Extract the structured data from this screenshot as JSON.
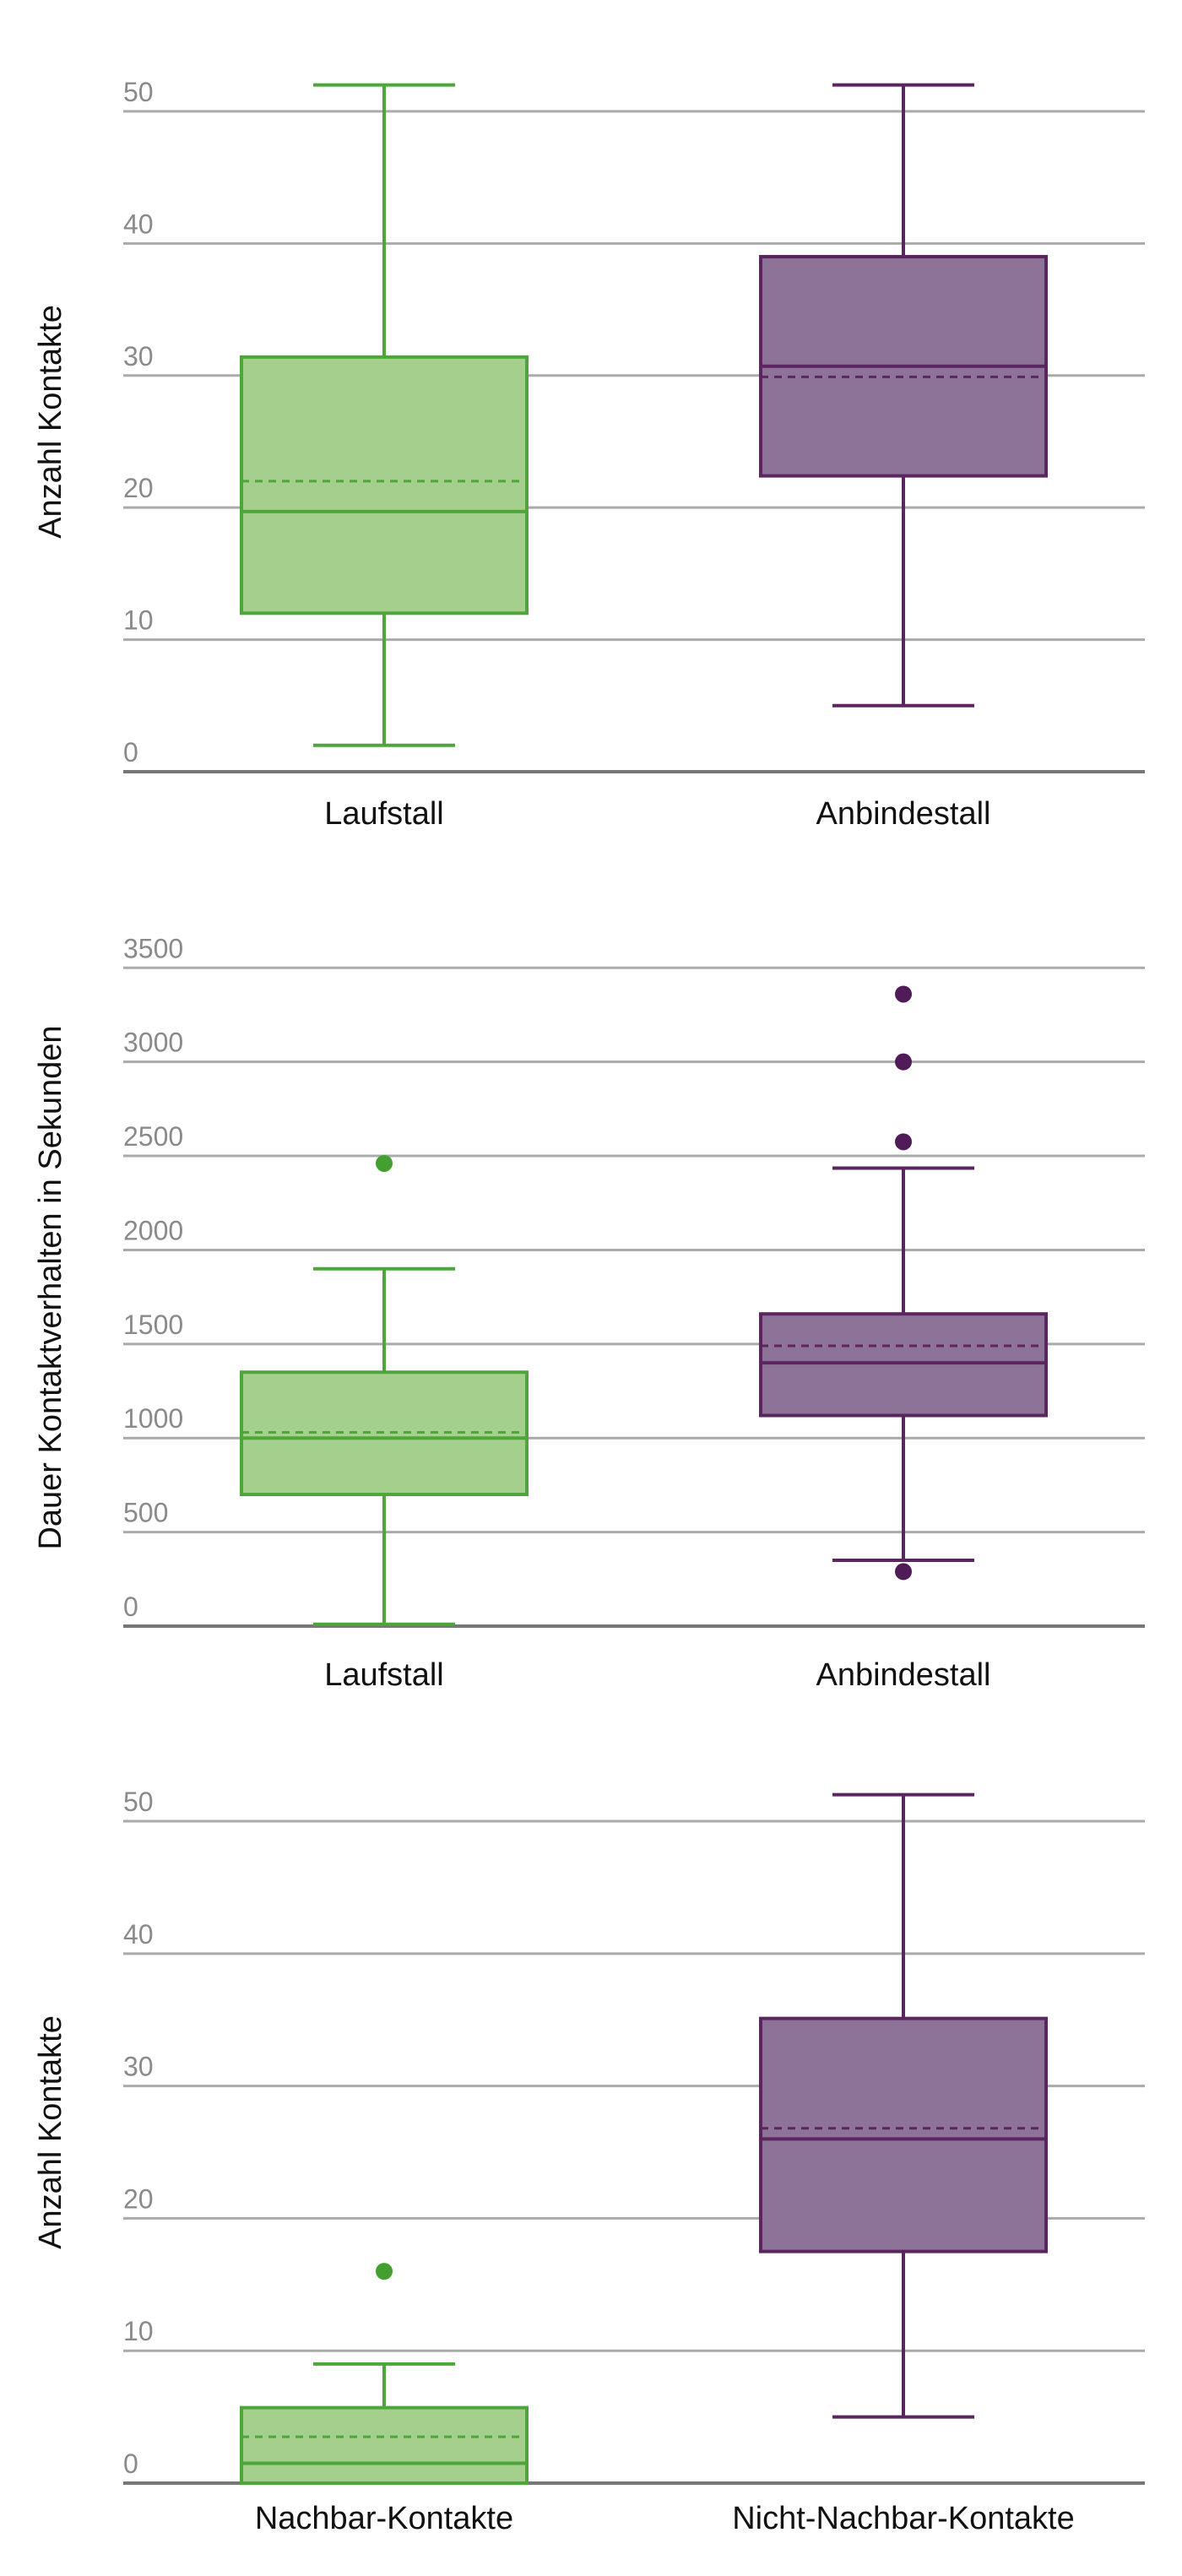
{
  "chart_data": [
    {
      "type": "box",
      "ylabel": "Anzahl Kontakte",
      "categories": [
        "Laufstall",
        "Anbindestall"
      ],
      "colors": [
        "#a5cf8c",
        "#8e7399"
      ],
      "stroke_colors": [
        "#4ca63a",
        "#5b2660"
      ],
      "outlier_colors": [
        "#43a030",
        "#4f1c57"
      ],
      "boxes": [
        {
          "whisker_low": 2,
          "q1": 12,
          "median": 19.7,
          "mean": 22,
          "q3": 31.4,
          "whisker_high": 52,
          "outliers": []
        },
        {
          "whisker_low": 5,
          "q1": 22.4,
          "median": 30.7,
          "mean": 29.9,
          "q3": 39,
          "whisker_high": 52,
          "outliers": []
        }
      ],
      "ylim": [
        0,
        53
      ],
      "yticks": [
        0,
        10,
        20,
        30,
        40,
        50
      ],
      "grid": true
    },
    {
      "type": "box",
      "ylabel": "Dauer Kontaktverhalten in Sekunden",
      "categories": [
        "Laufstall",
        "Anbindestall"
      ],
      "colors": [
        "#a5cf8c",
        "#8e7399"
      ],
      "stroke_colors": [
        "#4ca63a",
        "#5b2660"
      ],
      "outlier_colors": [
        "#43a030",
        "#4f1c57"
      ],
      "boxes": [
        {
          "whisker_low": 10,
          "q1": 700,
          "median": 1000,
          "mean": 1030,
          "q3": 1350,
          "whisker_high": 1900,
          "outliers": [
            2460
          ]
        },
        {
          "whisker_low": 350,
          "q1": 1120,
          "median": 1400,
          "mean": 1490,
          "q3": 1660,
          "whisker_high": 2435,
          "outliers": [
            3360,
            3000,
            2575,
            290
          ]
        }
      ],
      "ylim": [
        0,
        3600
      ],
      "yticks": [
        0,
        500,
        1000,
        1500,
        2000,
        2500,
        3000,
        3500
      ],
      "grid": true
    },
    {
      "type": "box",
      "ylabel": "Anzahl Kontakte",
      "categories": [
        "Nachbar-Kontakte",
        "Nicht-Nachbar-Kontakte"
      ],
      "colors": [
        "#a5cf8c",
        "#8e7399"
      ],
      "stroke_colors": [
        "#4ca63a",
        "#5b2660"
      ],
      "outlier_colors": [
        "#43a030",
        "#4f1c57"
      ],
      "boxes": [
        {
          "whisker_low": 0,
          "q1": 0,
          "median": 1.5,
          "mean": 3.5,
          "q3": 5.7,
          "whisker_high": 9,
          "outliers": [
            16
          ]
        },
        {
          "whisker_low": 5,
          "q1": 17.5,
          "median": 26,
          "mean": 26.8,
          "q3": 35.1,
          "whisker_high": 52,
          "outliers": []
        }
      ],
      "ylim": [
        0,
        53
      ],
      "yticks": [
        0,
        10,
        20,
        30,
        40,
        50
      ],
      "grid": true
    }
  ]
}
